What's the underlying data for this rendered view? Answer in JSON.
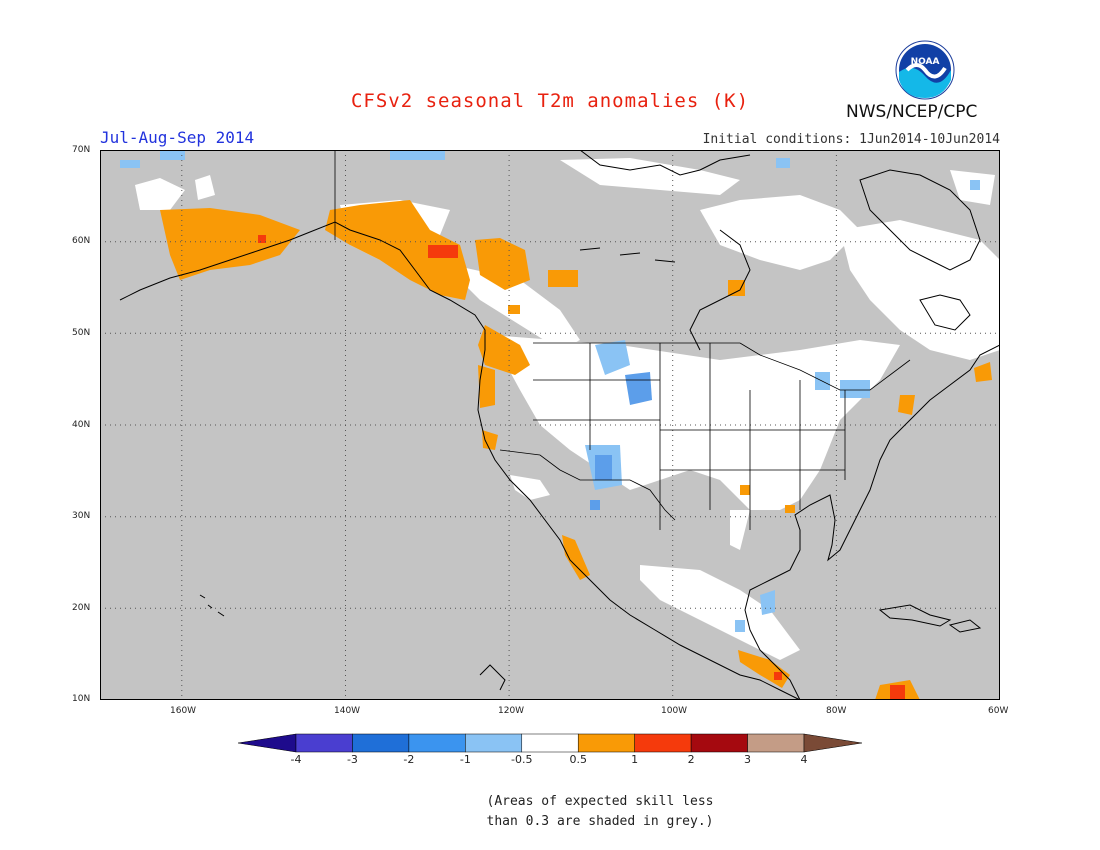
{
  "title": "CFSv2 seasonal T2m anomalies (K)",
  "season": "Jul-Aug-Sep 2014",
  "initial_conditions": "Initial conditions: 1Jun2014-10Jun2014",
  "organization": "NWS/NCEP/CPC",
  "logo_text": "NOAA",
  "map": {
    "region": "North America",
    "longitude_range": [
      -170,
      -60
    ],
    "latitude_range": [
      10,
      70
    ],
    "lat_labels": [
      "70N",
      "60N",
      "50N",
      "40N",
      "30N",
      "20N",
      "10N"
    ],
    "lon_labels": [
      "160W",
      "140W",
      "120W",
      "100W",
      "80W",
      "60W"
    ],
    "grid": "dotted"
  },
  "colorbar": {
    "labels": [
      "-4",
      "-3",
      "-2",
      "-1",
      "-0.5",
      "0.5",
      "1",
      "2",
      "3",
      "4"
    ],
    "colors": [
      "#1e0b8c",
      "#4a3ed0",
      "#1f6fd8",
      "#3b94ef",
      "#8ac3f4",
      "#ffffff",
      "#f99a06",
      "#f53a0c",
      "#a5090f",
      "#c49c86",
      "#7a4a36"
    ]
  },
  "colors": {
    "skill_mask": "#c4c4c4",
    "above_light": "#f99a06",
    "above_strong": "#f53a0c",
    "below_light": "#8ac3f4",
    "below_medium": "#5c9eea",
    "coastline": "#000000"
  },
  "note_line1": "(Areas of expected skill less",
  "note_line2": "than 0.3 are shaded in grey.)"
}
